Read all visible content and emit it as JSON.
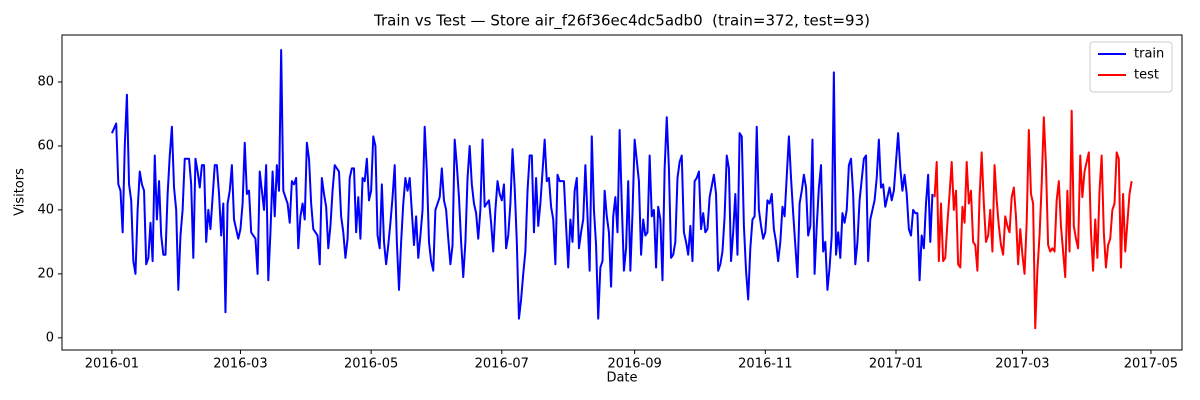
{
  "chart_data": {
    "type": "line",
    "title": "Train vs Test — Store air_f26f36ec4dc5adb0  (train=372, test=93)",
    "x_label": "Date",
    "y_label": "Visitors",
    "series": [
      {
        "name": "train",
        "color": "#0000ff",
        "x": [
          0,
          2,
          3,
          4,
          5,
          6,
          7,
          8,
          9,
          10,
          11,
          12,
          13,
          14,
          15,
          16,
          17,
          18,
          19,
          20,
          21,
          22,
          23,
          24,
          25,
          26,
          27,
          28,
          29,
          30,
          31,
          32,
          33,
          34,
          36,
          37,
          38,
          39,
          40,
          41,
          42,
          43,
          44,
          45,
          46,
          47,
          48,
          49,
          50,
          51,
          52,
          53,
          54,
          55,
          56,
          57,
          58,
          59,
          60,
          61,
          62,
          63,
          64,
          65,
          66,
          67,
          68,
          69,
          71,
          72,
          73,
          74,
          75,
          76,
          77,
          78,
          79,
          80,
          81,
          82,
          83,
          84,
          85,
          86,
          87,
          88,
          89,
          90,
          91,
          92,
          93,
          94,
          95,
          96,
          97,
          98,
          99,
          100,
          101,
          102,
          103,
          104,
          106,
          107,
          108,
          109,
          110,
          111,
          112,
          113,
          114,
          115,
          116,
          117,
          118,
          119,
          120,
          121,
          122,
          123,
          124,
          125,
          126,
          127,
          128,
          129,
          130,
          131,
          132,
          133,
          134,
          135,
          136,
          137,
          138,
          139,
          141,
          142,
          143,
          144,
          145,
          146,
          147,
          148,
          149,
          150,
          151,
          152,
          153,
          154,
          155,
          156,
          157,
          158,
          159,
          160,
          161,
          162,
          163,
          164,
          165,
          166,
          167,
          168,
          169,
          170,
          171,
          172,
          173,
          174,
          176,
          177,
          178,
          179,
          180,
          181,
          182,
          183,
          184,
          185,
          186,
          187,
          188,
          189,
          190,
          191,
          192,
          193,
          194,
          195,
          196,
          197,
          198,
          199,
          200,
          201,
          202,
          203,
          204,
          205,
          206,
          207,
          208,
          209,
          211,
          212,
          213,
          214,
          215,
          216,
          217,
          218,
          219,
          220,
          221,
          222,
          223,
          224,
          225,
          226,
          227,
          228,
          229,
          230,
          231,
          232,
          233,
          234,
          235,
          236,
          237,
          238,
          239,
          240,
          241,
          242,
          243,
          244,
          246,
          247,
          248,
          249,
          250,
          251,
          252,
          253,
          254,
          255,
          256,
          257,
          258,
          259,
          260,
          261,
          262,
          263,
          264,
          265,
          266,
          267,
          268,
          269,
          270,
          271,
          272,
          273,
          274,
          275,
          276,
          277,
          278,
          279,
          281,
          282,
          283,
          284,
          285,
          286,
          287,
          288,
          289,
          290,
          291,
          292,
          293,
          294,
          295,
          296,
          297,
          298,
          299,
          300,
          301,
          302,
          303,
          304,
          305,
          306,
          307,
          308,
          309,
          310,
          311,
          312,
          313,
          314,
          316,
          317,
          318,
          319,
          320,
          321,
          322,
          323,
          324,
          325,
          326,
          327,
          328,
          329,
          330,
          331,
          332,
          333,
          334,
          335,
          336,
          337,
          338,
          339,
          340,
          341,
          342,
          343,
          344,
          345,
          346,
          347,
          348,
          349,
          351,
          352,
          353,
          354,
          355,
          356,
          357,
          358,
          359,
          360,
          361,
          363,
          364,
          365,
          366,
          367,
          368,
          369,
          370,
          371,
          372,
          373,
          374,
          375,
          376,
          377,
          378,
          379,
          380,
          381,
          382,
          383
        ],
        "values": [
          64,
          67,
          48,
          46,
          33,
          60,
          76,
          48,
          43,
          24,
          20,
          40,
          52,
          48,
          46,
          23,
          25,
          36,
          24,
          57,
          37,
          49,
          32,
          26,
          26,
          45,
          57,
          66,
          47,
          40,
          15,
          32,
          40,
          56,
          56,
          48,
          25,
          56,
          52,
          47,
          54,
          54,
          30,
          40,
          34,
          44,
          54,
          54,
          45,
          32,
          42,
          8,
          42,
          46,
          54,
          37,
          34,
          31,
          34,
          42,
          61,
          45,
          46,
          33,
          32,
          31,
          20,
          52,
          40,
          54,
          18,
          33,
          52,
          38,
          54,
          46,
          90,
          46,
          44,
          42,
          36,
          49,
          48,
          50,
          28,
          38,
          42,
          37,
          61,
          56,
          42,
          34,
          33,
          32,
          23,
          50,
          45,
          41,
          28,
          35,
          46,
          54,
          52,
          38,
          33,
          25,
          31,
          50,
          53,
          53,
          33,
          44,
          31,
          50,
          49,
          56,
          43,
          46,
          63,
          60,
          32,
          28,
          48,
          30,
          23,
          29,
          36,
          44,
          54,
          30,
          15,
          30,
          42,
          50,
          46,
          50,
          29,
          38,
          25,
          32,
          40,
          66,
          52,
          30,
          24,
          21,
          40,
          42,
          44,
          53,
          43,
          40,
          31,
          23,
          29,
          62,
          54,
          44,
          30,
          19,
          30,
          50,
          60,
          48,
          42,
          39,
          31,
          40,
          62,
          41,
          43,
          36,
          27,
          40,
          49,
          45,
          43,
          48,
          28,
          32,
          42,
          59,
          47,
          30,
          6,
          12,
          20,
          27,
          46,
          57,
          57,
          33,
          50,
          35,
          42,
          52,
          62,
          49,
          50,
          41,
          37,
          23,
          51,
          49,
          49,
          35,
          22,
          37,
          30,
          46,
          50,
          28,
          33,
          37,
          54,
          38,
          21,
          63,
          40,
          29,
          6,
          22,
          24,
          46,
          38,
          33,
          16,
          38,
          44,
          33,
          65,
          42,
          21,
          28,
          49,
          21,
          39,
          62,
          49,
          26,
          37,
          32,
          33,
          57,
          38,
          40,
          22,
          41,
          37,
          18,
          53,
          69,
          53,
          25,
          26,
          30,
          50,
          55,
          57,
          33,
          30,
          26,
          35,
          24,
          49,
          50,
          52,
          34,
          39,
          33,
          34,
          44,
          51,
          45,
          21,
          23,
          27,
          38,
          57,
          53,
          24,
          33,
          45,
          26,
          64,
          63,
          35,
          21,
          12,
          28,
          37,
          38,
          66,
          40,
          35,
          31,
          33,
          43,
          42,
          45,
          34,
          30,
          24,
          30,
          41,
          38,
          63,
          50,
          39,
          29,
          19,
          42,
          46,
          51,
          47,
          32,
          35,
          62,
          20,
          35,
          47,
          54,
          27,
          30,
          15,
          22,
          32,
          83,
          26,
          33,
          25,
          39,
          36,
          40,
          54,
          56,
          45,
          23,
          30,
          43,
          56,
          57,
          24,
          37,
          40,
          43,
          50,
          62,
          47,
          48,
          41,
          47,
          43,
          46,
          55,
          64,
          53,
          46,
          51,
          45,
          34,
          32,
          40,
          39,
          39,
          18,
          32,
          28,
          42,
          51,
          30,
          45
        ]
      },
      {
        "name": "test",
        "color": "#ff0000",
        "x": [
          384,
          385,
          386,
          387,
          388,
          389,
          390,
          391,
          392,
          393,
          394,
          395,
          396,
          397,
          398,
          399,
          400,
          401,
          402,
          403,
          404,
          405,
          406,
          407,
          408,
          409,
          410,
          411,
          412,
          413,
          414,
          415,
          416,
          417,
          418,
          419,
          420,
          421,
          422,
          423,
          424,
          425,
          426,
          427,
          428,
          429,
          430,
          431,
          432,
          433,
          434,
          435,
          436,
          437,
          438,
          439,
          440,
          441,
          442,
          443,
          444,
          445,
          446,
          447,
          448,
          449,
          450,
          451,
          452,
          453,
          454,
          455,
          456,
          457,
          458,
          459,
          460,
          461,
          462,
          463,
          464,
          465,
          466,
          467,
          468,
          469,
          470,
          471,
          472,
          473,
          474,
          475,
          476
        ],
        "values": [
          44,
          55,
          24,
          42,
          24,
          25,
          36,
          45,
          55,
          40,
          46,
          23,
          22,
          41,
          36,
          55,
          42,
          46,
          30,
          29,
          21,
          44,
          58,
          42,
          30,
          32,
          40,
          27,
          54,
          43,
          35,
          29,
          26,
          38,
          35,
          33,
          44,
          47,
          38,
          23,
          34,
          26,
          20,
          36,
          65,
          45,
          42,
          3,
          21,
          32,
          48,
          69,
          54,
          29,
          27,
          28,
          27,
          43,
          49,
          35,
          27,
          19,
          46,
          27,
          71,
          35,
          31,
          28,
          57,
          44,
          52,
          55,
          58,
          33,
          21,
          37,
          25,
          46,
          57,
          33,
          22,
          29,
          31,
          40,
          42,
          58,
          56,
          22,
          45,
          27,
          36,
          45,
          49
        ]
      }
    ],
    "xlim": [
      -23.3,
      499.5
    ],
    "ylim": [
      -3.8,
      94.7
    ],
    "xticks": [
      {
        "value": 0,
        "label": "2016-01"
      },
      {
        "value": 60,
        "label": "2016-03"
      },
      {
        "value": 121,
        "label": "2016-05"
      },
      {
        "value": 182,
        "label": "2016-07"
      },
      {
        "value": 244,
        "label": "2016-09"
      },
      {
        "value": 305,
        "label": "2016-11"
      },
      {
        "value": 366,
        "label": "2017-01"
      },
      {
        "value": 425,
        "label": "2017-03"
      },
      {
        "value": 485,
        "label": "2017-05"
      }
    ],
    "yticks": [
      0,
      20,
      40,
      60,
      80
    ],
    "legend": "upper right"
  }
}
